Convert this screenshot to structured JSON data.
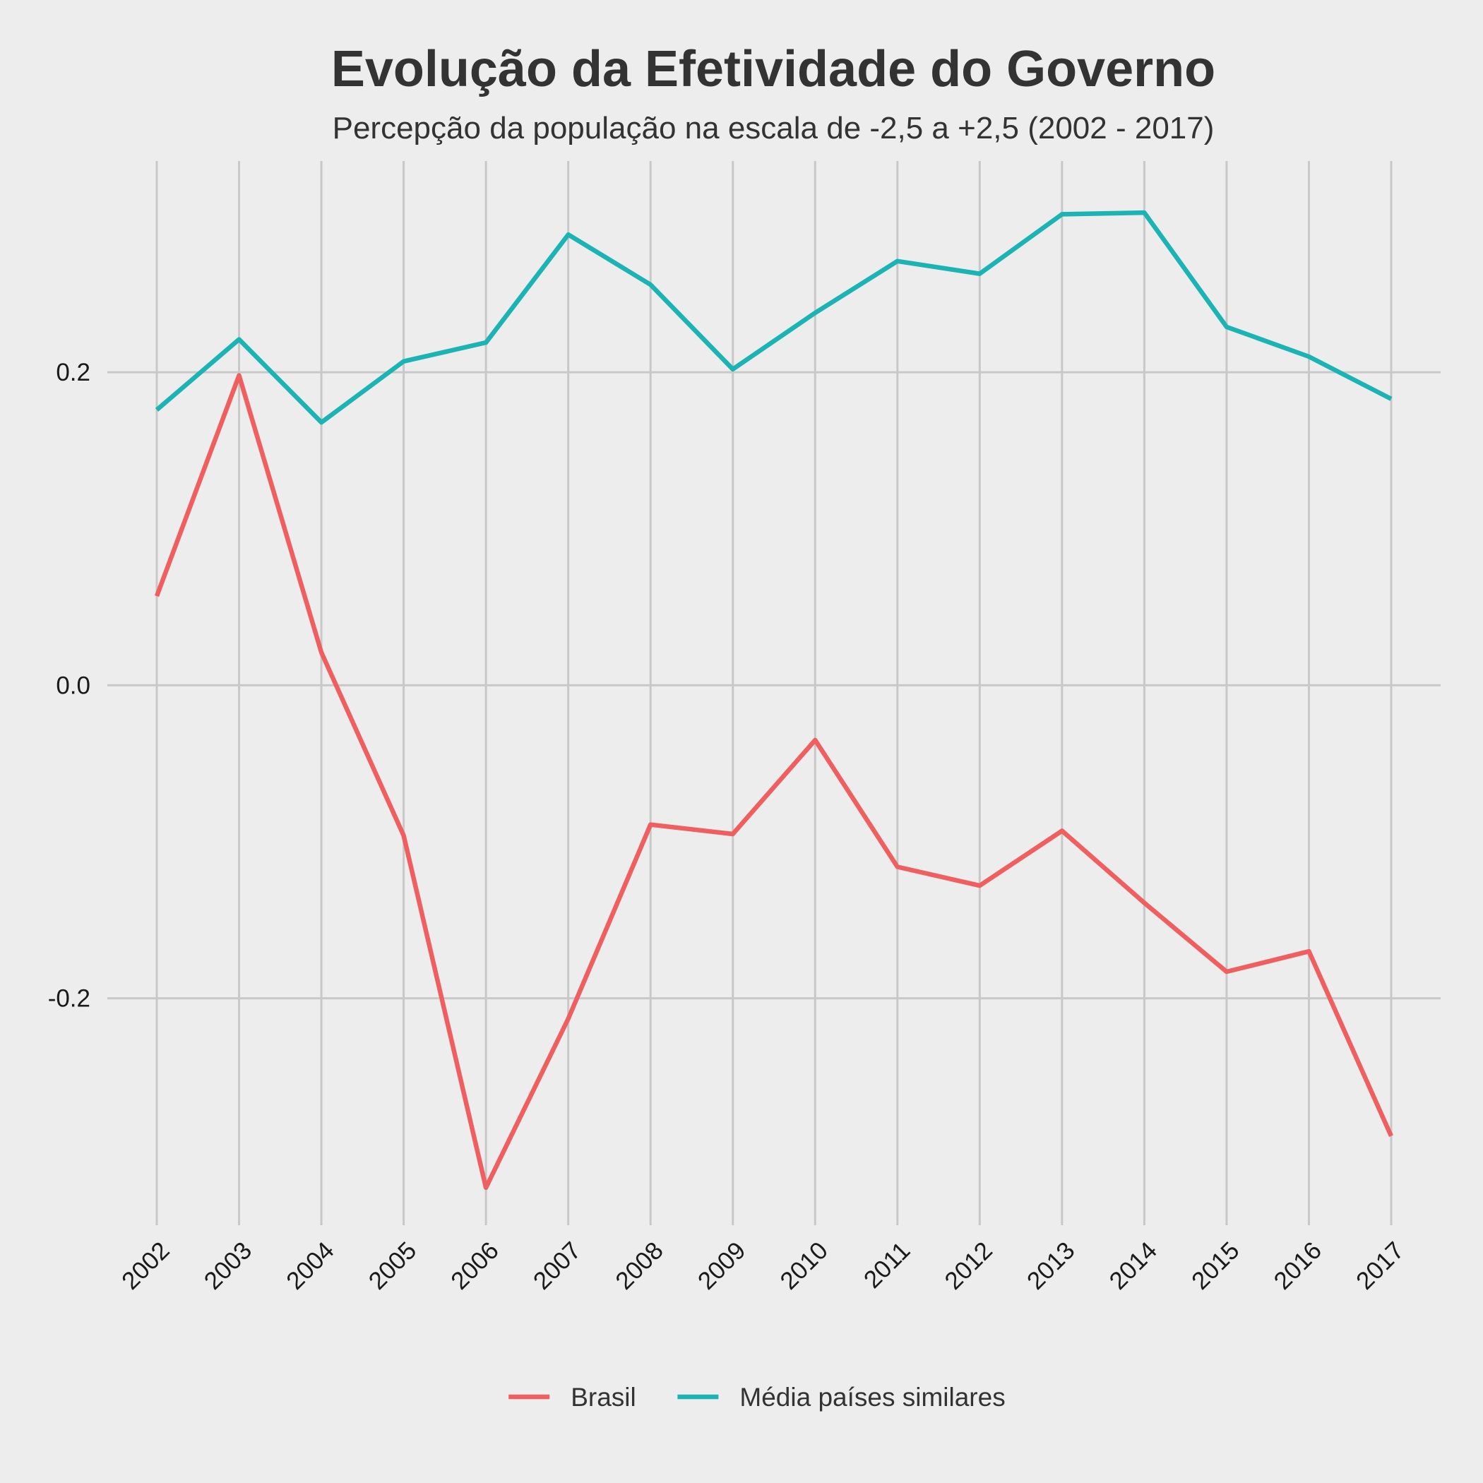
{
  "chart_data": {
    "type": "line",
    "title": "Evolução da Efetividade do Governo",
    "subtitle": "Percepção da população na escala de -2,5 a +2,5 (2002 - 2017)",
    "xlabel": "",
    "ylabel": "",
    "x": [
      2002,
      2003,
      2004,
      2005,
      2006,
      2007,
      2008,
      2009,
      2010,
      2011,
      2012,
      2013,
      2014,
      2015,
      2016,
      2017
    ],
    "x_tick_labels": [
      "2002",
      "2003",
      "2004",
      "2005",
      "2006",
      "2007",
      "2008",
      "2009",
      "2010",
      "2011",
      "2012",
      "2013",
      "2014",
      "2015",
      "2016",
      "2017"
    ],
    "ylim": [
      -0.345,
      0.335
    ],
    "y_ticks": [
      0.2,
      0.0,
      -0.2
    ],
    "y_tick_labels": [
      "0.2",
      "0.0",
      "-0.2"
    ],
    "grid": true,
    "legend_position": "bottom",
    "series": [
      {
        "name": "Brasil",
        "color": "#ef5f5f",
        "values": [
          0.057,
          0.198,
          0.021,
          -0.096,
          -0.321,
          -0.213,
          -0.089,
          -0.095,
          -0.035,
          -0.116,
          -0.128,
          -0.093,
          -0.139,
          -0.183,
          -0.17,
          -0.288
        ]
      },
      {
        "name": "Média países similares",
        "color": "#1bb3b3",
        "values": [
          0.176,
          0.221,
          0.168,
          0.207,
          0.219,
          0.288,
          0.256,
          0.202,
          0.238,
          0.271,
          0.263,
          0.301,
          0.302,
          0.229,
          0.21,
          0.183
        ]
      }
    ]
  }
}
